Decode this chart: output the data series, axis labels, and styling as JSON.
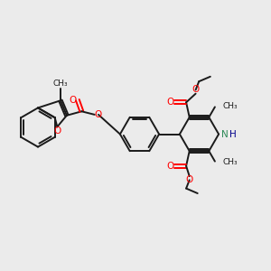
{
  "bg_color": "#ebebeb",
  "bond_color": "#1a1a1a",
  "o_color": "#ff0000",
  "n_color": "#2e8b57",
  "h_color": "#00008b",
  "line_width": 1.4,
  "figsize": [
    3.0,
    3.0
  ],
  "dpi": 100,
  "xlim": [
    0,
    10
  ],
  "ylim": [
    0,
    10
  ]
}
